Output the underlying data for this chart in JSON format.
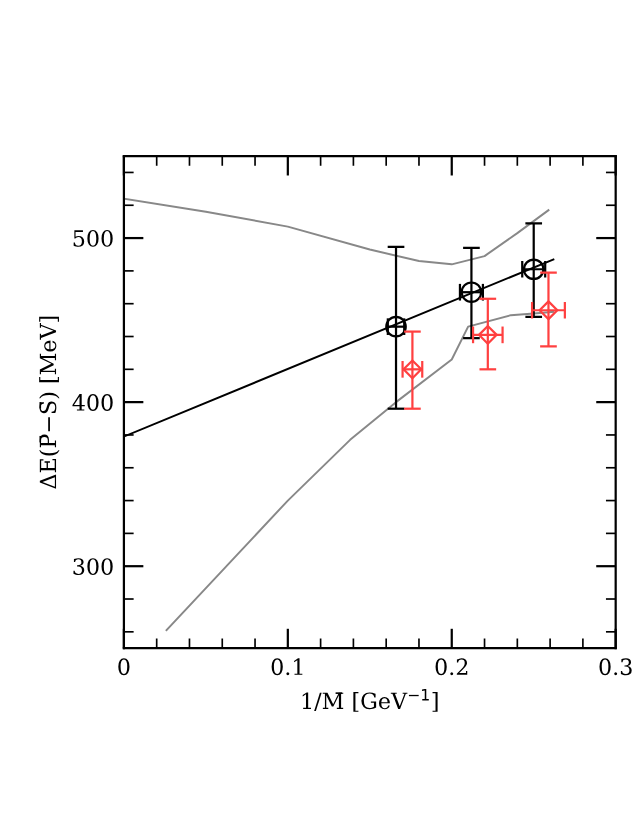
{
  "chart_data": {
    "type": "scatter",
    "xlabel": "1/M̄ [GeV$^{−1}$]",
    "ylabel": "ΔE(P̄−S̄) [MeV]",
    "xlim": [
      0,
      0.3
    ],
    "ylim": [
      250,
      550
    ],
    "xticks": [
      0,
      {
        "value": 0.02,
        "label": null
      },
      {
        "value": 0.04,
        "label": null
      },
      {
        "value": 0.06,
        "label": null
      },
      {
        "value": 0.08,
        "label": null
      },
      0.1,
      {
        "value": 0.12,
        "label": null
      },
      {
        "value": 0.14,
        "label": null
      },
      {
        "value": 0.16,
        "label": null
      },
      {
        "value": 0.18,
        "label": null
      },
      0.2,
      {
        "value": 0.22,
        "label": null
      },
      {
        "value": 0.24,
        "label": null
      },
      {
        "value": 0.26,
        "label": null
      },
      {
        "value": 0.28,
        "label": null
      },
      0.3
    ],
    "yticks": [
      {
        "value": 260,
        "label": null
      },
      {
        "value": 280,
        "label": null
      },
      300,
      {
        "value": 320,
        "label": null
      },
      {
        "value": 340,
        "label": null
      },
      {
        "value": 360,
        "label": null
      },
      {
        "value": 380,
        "label": null
      },
      400,
      {
        "value": 420,
        "label": null
      },
      {
        "value": 440,
        "label": null
      },
      {
        "value": 460,
        "label": null
      },
      {
        "value": 480,
        "label": null
      },
      500,
      {
        "value": 520,
        "label": null
      },
      {
        "value": 540,
        "label": null
      }
    ],
    "grid": false,
    "legend": false,
    "series": [
      {
        "type": "line",
        "color": "#000000",
        "marker": "none",
        "line_style": "solid",
        "x": [
          0,
          0.262
        ],
        "values": [
          379,
          487
        ]
      },
      {
        "type": "line",
        "color": "#888888",
        "marker": "none",
        "line_style": "solid",
        "x": [
          0,
          0.05,
          0.1,
          0.15,
          0.18,
          0.2,
          0.22,
          0.24,
          0.259
        ],
        "values": [
          524,
          516,
          507,
          493,
          486,
          484,
          489,
          503,
          517
        ]
      },
      {
        "type": "line",
        "color": "#888888",
        "marker": "none",
        "line_style": "solid",
        "x": [
          0.026,
          0.1,
          0.138,
          0.166,
          0.2,
          0.21,
          0.236,
          0.25,
          0.262
        ],
        "values": [
          261,
          340,
          377,
          400,
          426,
          446,
          453,
          454,
          455
        ]
      },
      {
        "color": "#000000",
        "marker": "circle",
        "x": [
          0.166,
          0.212,
          0.25
        ],
        "values": [
          446,
          467,
          481
        ],
        "errors": [
          [
            396,
            494.6
          ],
          [
            439,
            494
          ],
          [
            452,
            509
          ]
        ],
        "xerrors": [
          [
            0.161,
            0.171
          ],
          [
            0.205,
            0.219
          ],
          [
            0.243,
            0.257
          ]
        ]
      },
      {
        "color": "#ff4040",
        "marker": "diamond",
        "x": [
          0.176,
          0.222,
          0.259
        ],
        "values": [
          420,
          441,
          456
        ],
        "errors": [
          [
            396,
            443
          ],
          [
            420,
            463
          ],
          [
            434,
            479
          ]
        ],
        "xerrors": [
          [
            0.17,
            0.182
          ],
          [
            0.213,
            0.231
          ],
          [
            0.249,
            0.269
          ]
        ]
      }
    ]
  }
}
